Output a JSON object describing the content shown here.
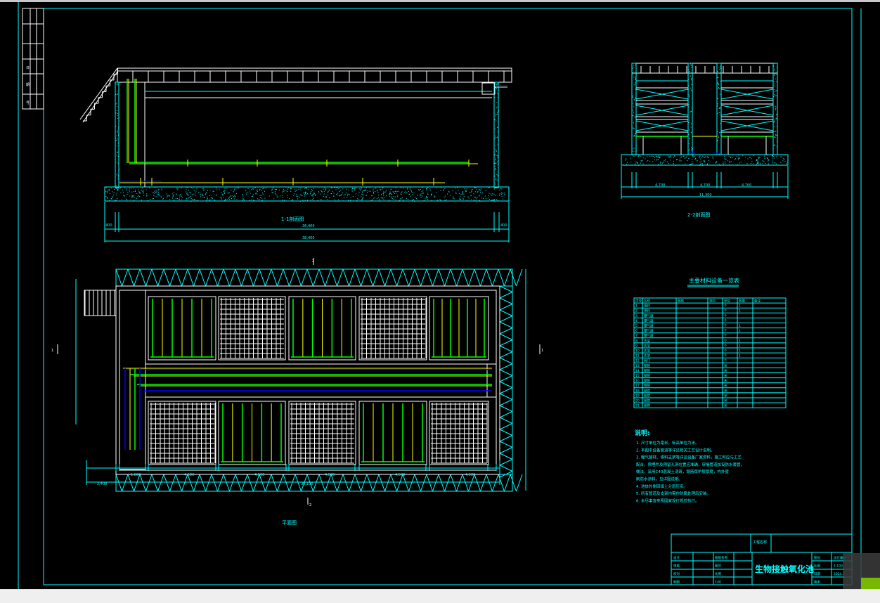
{
  "drawing": {
    "title": "生物接触氧化池",
    "colors": {
      "background": "#000000",
      "frame": "#00ffff",
      "structure": "#ffffff",
      "air_pipe": "#00ff00",
      "water_pipe": "#ffff00",
      "sludge_pipe": "#0000ff"
    },
    "views": {
      "section_1_1": {
        "label": "1-1剖面图",
        "dims": [
          "36,400",
          "38,400"
        ],
        "side_dims": [
          "400",
          "400"
        ]
      },
      "section_2_2": {
        "label": "2-2剖面图",
        "dims": [
          "4,700",
          "4,700",
          "4,700",
          "11,300"
        ]
      },
      "plan": {
        "label": "平面图",
        "dims": [
          "1,800",
          "4,500",
          "4,500",
          "4,500",
          "4,500",
          "4,500"
        ],
        "total": "30,100",
        "left_dim": "2,400",
        "cut_marks": [
          "1",
          "1",
          "2",
          "2"
        ]
      }
    },
    "left_strip": {
      "labels": [
        "日",
        "期",
        "号"
      ]
    },
    "materials_table": {
      "title": "主要材料设备一览表",
      "headers": [
        "序号",
        "名称",
        "规格",
        "材料",
        "单位",
        "数量",
        "备注"
      ],
      "rows": [
        [
          "1",
          "填料",
          "",
          "",
          "个",
          "1",
          ""
        ],
        [
          "2",
          "填料",
          "",
          "",
          "个",
          "1",
          ""
        ],
        [
          "3",
          "曝气器",
          "",
          "",
          "个",
          "",
          ""
        ],
        [
          "4",
          "曝气器",
          "",
          "",
          "个",
          "",
          ""
        ],
        [
          "5",
          "曝气器",
          "",
          "",
          "个",
          "1",
          ""
        ],
        [
          "6",
          "曝气器",
          "",
          "",
          "个",
          "1",
          ""
        ],
        [
          "7",
          "曝气器",
          "",
          "",
          "个",
          "",
          ""
        ],
        [
          "8",
          "支架",
          "",
          "",
          "个",
          "1",
          ""
        ],
        [
          "9",
          "支架",
          "",
          "",
          "个",
          "1",
          ""
        ],
        [
          "10",
          "支架",
          "",
          "",
          "个",
          "1",
          ""
        ],
        [
          "11",
          "支架",
          "",
          "",
          "个",
          "1",
          ""
        ],
        [
          "12",
          "阀门",
          "",
          "",
          "个",
          "",
          ""
        ],
        [
          "13",
          "钢管",
          "",
          "",
          "米",
          "",
          ""
        ],
        [
          "14",
          "钢管",
          "",
          "",
          "米",
          "",
          ""
        ],
        [
          "15",
          "钢管",
          "",
          "",
          "米",
          "",
          ""
        ],
        [
          "16",
          "钢管",
          "",
          "",
          "米",
          "",
          ""
        ],
        [
          "17",
          "钢管",
          "",
          "",
          "米",
          "",
          ""
        ],
        [
          "18",
          "钢管",
          "",
          "",
          "米",
          "",
          ""
        ],
        [
          "19",
          "钢管",
          "",
          "",
          "米",
          "",
          ""
        ],
        [
          "20",
          "钢管",
          "",
          "",
          "米",
          "",
          ""
        ],
        [
          "21",
          "钢管",
          "",
          "",
          "米",
          "",
          ""
        ]
      ]
    },
    "notes": {
      "heading": "说明:",
      "items": [
        "1. 尺寸单位为毫米，标高单位为米。",
        "2. 本图中设备管道等详见相关工艺设计说明。",
        "3. 曝气管材、填料支架等详见设备厂家资料，施工时应与工艺",
        "配合，预埋件及预留孔洞位置应准确，穿墙管道加设防水套管，",
        "做法，采用C40混凝土浇筑，钢筋保护层厚度，内外壁",
        "刷防水涂料，见详图说明。",
        "4. 池体外侧回填土分层压实。",
        "5. 所有管道及支架均需作防腐处理后安装。",
        "6. 未尽事宜参照国家现行规范执行。"
      ]
    },
    "title_block": {
      "project_label": "工程名称",
      "rows": [
        [
          "设计",
          "",
          "图纸名称",
          ""
        ],
        [
          "审核",
          "",
          "图号",
          ""
        ],
        [
          "校对",
          "",
          "比例",
          ""
        ],
        [
          "制图",
          "",
          "C40",
          ""
        ]
      ],
      "right": [
        [
          "图号",
          "设计编号"
        ],
        [
          "比例",
          "1:100"
        ],
        [
          "日期",
          "2024.1"
        ],
        [
          "版本",
          ""
        ]
      ]
    }
  }
}
